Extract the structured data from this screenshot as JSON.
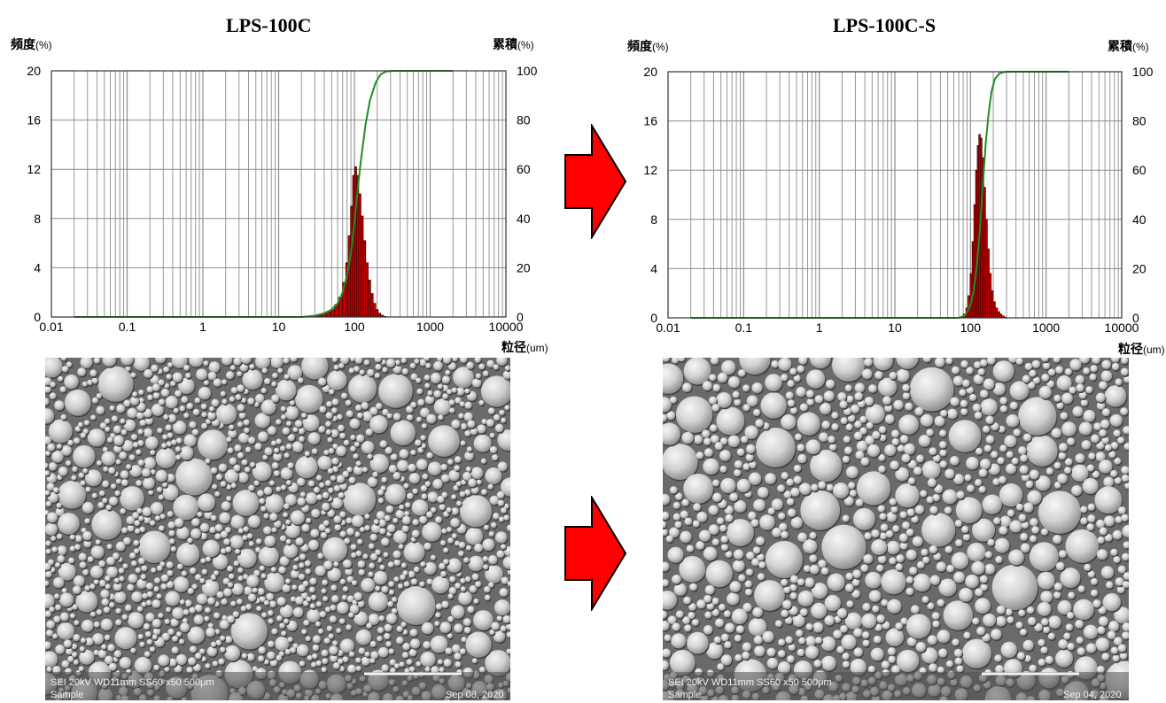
{
  "chart_data": [
    {
      "type": "bar",
      "title": "LPS-100C",
      "ylabel_left": "頻度",
      "ylabel_left_unit": "(%)",
      "ylabel_right": "累積",
      "ylabel_right_unit": "(%)",
      "xlabel": "粒径",
      "xlabel_unit": "(um)",
      "x_scale": "log",
      "xlim": [
        0.01,
        10000
      ],
      "ylim_left": [
        0,
        20
      ],
      "ylim_right": [
        0,
        100
      ],
      "x_ticks": [
        "0.01",
        "0.1",
        "1",
        "10",
        "100",
        "1000",
        "10000"
      ],
      "y_left_ticks": [
        "0",
        "4",
        "8",
        "12",
        "16",
        "20"
      ],
      "y_right_ticks": [
        "0",
        "20",
        "40",
        "60",
        "80",
        "100"
      ],
      "grid": true,
      "frequency": {
        "x": [
          26,
          30,
          35,
          40,
          46,
          52,
          58,
          66,
          74,
          80,
          86,
          92,
          98,
          104,
          110,
          118,
          126,
          136,
          146,
          158,
          170,
          184,
          198,
          214,
          230,
          250
        ],
        "values": [
          0.05,
          0.1,
          0.15,
          0.25,
          0.4,
          0.6,
          1.0,
          1.6,
          2.8,
          4.4,
          6.6,
          9.0,
          11.5,
          12.2,
          11.5,
          10.0,
          8.2,
          6.2,
          4.4,
          3.0,
          1.9,
          1.1,
          0.6,
          0.3,
          0.15,
          0.05
        ]
      },
      "cumulative": {
        "x": [
          0.02,
          20,
          30,
          40,
          50,
          60,
          70,
          80,
          90,
          100,
          110,
          120,
          140,
          160,
          190,
          220,
          260,
          320,
          2000
        ],
        "values": [
          0,
          0,
          0.5,
          1.5,
          3,
          5.5,
          10,
          17,
          26,
          38,
          51,
          62,
          78,
          88,
          95,
          98.5,
          99.7,
          100,
          100
        ]
      }
    },
    {
      "type": "bar",
      "title": "LPS-100C-S",
      "ylabel_left": "頻度",
      "ylabel_left_unit": "(%)",
      "ylabel_right": "累積",
      "ylabel_right_unit": "(%)",
      "xlabel": "粒径",
      "xlabel_unit": "(um)",
      "x_scale": "log",
      "xlim": [
        0.01,
        10000
      ],
      "ylim_left": [
        0,
        20
      ],
      "ylim_right": [
        0,
        100
      ],
      "x_ticks": [
        "0.01",
        "0.1",
        "1",
        "10",
        "100",
        "1000",
        "10000"
      ],
      "y_left_ticks": [
        "0",
        "4",
        "8",
        "12",
        "16",
        "20"
      ],
      "y_right_ticks": [
        "0",
        "20",
        "40",
        "60",
        "80",
        "100"
      ],
      "grid": true,
      "frequency": {
        "x": [
          78,
          84,
          90,
          96,
          102,
          108,
          114,
          120,
          126,
          132,
          138,
          146,
          154,
          162,
          172,
          182,
          194,
          206,
          220,
          236,
          252,
          270,
          290
        ],
        "values": [
          0.1,
          0.3,
          0.8,
          1.8,
          3.6,
          6.2,
          9.2,
          12.0,
          14.0,
          14.9,
          14.6,
          13.0,
          10.6,
          8.0,
          5.6,
          3.6,
          2.2,
          1.3,
          0.8,
          0.5,
          0.3,
          0.15,
          0.05
        ]
      },
      "cumulative": {
        "x": [
          0.02,
          70,
          85,
          100,
          110,
          120,
          130,
          140,
          150,
          160,
          175,
          190,
          210,
          240,
          270,
          300,
          2000
        ],
        "values": [
          0,
          0,
          1,
          5,
          11,
          20,
          32,
          46,
          60,
          72,
          84,
          92,
          97,
          99.2,
          99.8,
          100,
          100
        ]
      }
    }
  ],
  "sem_images": [
    {
      "footer_left": "SEI   20kV   WD11mm   SS60   x50      500μm",
      "footer_sample": "Sample",
      "footer_date": "Sep 08, 2020"
    },
    {
      "footer_left": "SEI   20kV   WD11mm   SS60   x50      500μm",
      "footer_sample": "Sample",
      "footer_date": "Sep 04, 2020"
    }
  ],
  "colors": {
    "bar_fill": "#c00000",
    "bar_edge": "#4a0000",
    "cumulative_line": "#1f8f1f",
    "grid": "#8c8c8c",
    "arrow_fill": "#ff0000",
    "arrow_edge": "#000000"
  }
}
